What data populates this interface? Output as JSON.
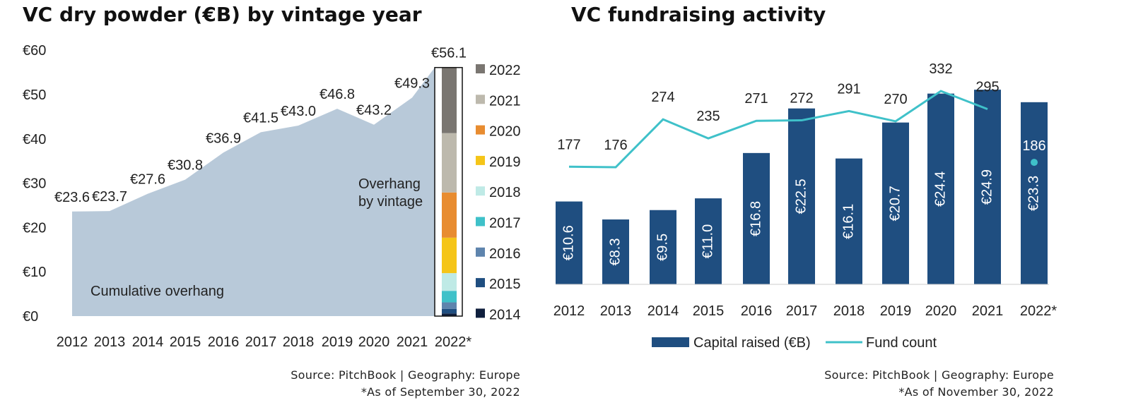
{
  "left_title": "VC dry powder (€B) by vintage year",
  "right_title": "VC fundraising activity",
  "left_source": "Source: PitchBook  |  Geography: Europe",
  "left_note": "*As of September 30, 2022",
  "right_source": "Source: PitchBook  |  Geography: Europe",
  "right_note": "*As of November 30, 2022",
  "chart_data": [
    {
      "type": "area",
      "title": "VC dry powder (€B) by vintage year",
      "categories": [
        "2012",
        "2013",
        "2014",
        "2015",
        "2016",
        "2017",
        "2018",
        "2019",
        "2020",
        "2021",
        "2022*"
      ],
      "values": [
        23.6,
        23.7,
        27.6,
        30.8,
        36.9,
        41.5,
        43.0,
        46.8,
        43.2,
        49.3,
        56.1
      ],
      "value_labels": [
        "€23.6",
        "€23.7",
        "€27.6",
        "€30.8",
        "€36.9",
        "€41.5",
        "€43.0",
        "€46.8",
        "€43.2",
        "€49.3",
        "€56.1"
      ],
      "yticks": [
        "€0",
        "€10",
        "€20",
        "€30",
        "€40",
        "€50",
        "€60"
      ],
      "ylim": [
        0,
        60
      ],
      "area_color": "#b8c9d9",
      "area_label": "Cumulative overhang",
      "stack_label": "Overhang by vintage",
      "stack_label_lines": [
        "Overhang",
        "by vintage"
      ],
      "stack": [
        {
          "name": "2014",
          "value": 0.6,
          "color": "#0f1f3d"
        },
        {
          "name": "2015",
          "value": 1.0,
          "color": "#1f4e80"
        },
        {
          "name": "2016",
          "value": 1.5,
          "color": "#5e84ad"
        },
        {
          "name": "2017",
          "value": 2.6,
          "color": "#3fc1c9"
        },
        {
          "name": "2018",
          "value": 4.0,
          "color": "#bfeae6"
        },
        {
          "name": "2019",
          "value": 8.0,
          "color": "#f5c518"
        },
        {
          "name": "2020",
          "value": 10.2,
          "color": "#e88c30"
        },
        {
          "name": "2021",
          "value": 13.4,
          "color": "#bdb9ad"
        },
        {
          "name": "2022",
          "value": 14.8,
          "color": "#7a7671"
        }
      ]
    },
    {
      "type": "bar+line",
      "title": "VC fundraising activity",
      "categories": [
        "2012",
        "2013",
        "2014",
        "2015",
        "2016",
        "2017",
        "2018",
        "2019",
        "2020",
        "2021",
        "2022*"
      ],
      "series": [
        {
          "name": "Capital raised (€B)",
          "type": "bar",
          "color": "#1f4e80",
          "values": [
            10.6,
            8.3,
            9.5,
            11.0,
            16.8,
            22.5,
            16.1,
            20.7,
            24.4,
            24.9,
            23.3
          ],
          "labels": [
            "€10.6",
            "€8.3",
            "€9.5",
            "€11.0",
            "€16.8",
            "€22.5",
            "€16.1",
            "€20.7",
            "€24.4",
            "€24.9",
            "€23.3"
          ]
        },
        {
          "name": "Fund count",
          "type": "line",
          "color": "#3fc1c9",
          "values": [
            177,
            176,
            274,
            235,
            271,
            272,
            291,
            270,
            332,
            295,
            186
          ],
          "labels": [
            "177",
            "176",
            "274",
            "235",
            "271",
            "272",
            "291",
            "270",
            "332",
            "295",
            "186"
          ]
        }
      ],
      "legend": [
        "Capital raised (€B)",
        "Fund count"
      ]
    }
  ]
}
